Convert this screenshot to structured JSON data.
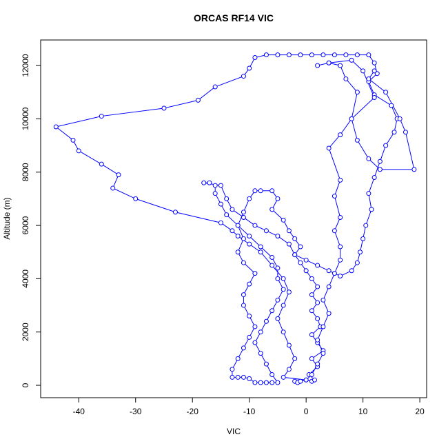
{
  "chart_data": {
    "type": "line",
    "markers": true,
    "title": "ORCAS RF14 VIC",
    "x_label": "VIC",
    "y_label": "Altitude (m)",
    "color": "#0000ff",
    "xlim": [
      -46.7,
      21.2
    ],
    "ylim": [
      -465,
      12960
    ],
    "xticks": [
      -40,
      -30,
      -20,
      -10,
      0,
      10,
      20
    ],
    "yticks": [
      0,
      2000,
      4000,
      6000,
      8000,
      10000,
      12000
    ],
    "x": [
      -2,
      -1.5,
      -1,
      0,
      1,
      1.5,
      0.5,
      2,
      1,
      3,
      2,
      1,
      2.5,
      2,
      1,
      2,
      1,
      2,
      1,
      0,
      -1,
      -2,
      -1,
      -2,
      -3,
      -4,
      -6,
      -5,
      -6,
      -8,
      -9,
      -10,
      -11,
      -12,
      -11,
      -12,
      -11,
      -9,
      -10,
      -11,
      -11,
      -10,
      -9,
      -10,
      -11,
      -12,
      -13,
      -13,
      -12,
      -11,
      -10,
      -9,
      -8,
      -7,
      -6,
      -5,
      -6,
      -7,
      -8,
      -9,
      -8,
      -7,
      -6,
      -5,
      -4,
      -5,
      -5,
      -6,
      -8,
      -10,
      -12,
      -14,
      -15,
      -16,
      -16,
      -17,
      -18,
      -15,
      -14,
      -13,
      -11,
      -9,
      -7,
      -5,
      -3,
      -2,
      0,
      2,
      4,
      6,
      8,
      9,
      9.5,
      10,
      10.5,
      11.5,
      11,
      12,
      13,
      14,
      15.5,
      16,
      15,
      12,
      11,
      12.5,
      12,
      11,
      9,
      7,
      5,
      3,
      1,
      -1,
      -3,
      -5,
      -7,
      -9,
      -10,
      -11,
      -16,
      -19,
      -25,
      -36,
      -44,
      -41,
      -40,
      -36,
      -33,
      -34,
      -30,
      -23,
      -15,
      -13,
      -12,
      -10,
      -8,
      -6,
      -4,
      -3,
      -4,
      -5,
      -4,
      -3,
      -2,
      -3,
      -4,
      0,
      1,
      2,
      3,
      2,
      3,
      4,
      3,
      4,
      5,
      6,
      6,
      5,
      6,
      5,
      6,
      4,
      6,
      8,
      9,
      7,
      6,
      4,
      2,
      4,
      8,
      10,
      12,
      8,
      9,
      11,
      13,
      19,
      17.5,
      16.5,
      14,
      11,
      12
    ],
    "values": [
      150,
      100,
      150,
      200,
      150,
      200,
      400,
      700,
      1000,
      1300,
      1600,
      1900,
      2200,
      2500,
      2800,
      3100,
      3400,
      3700,
      4000,
      4300,
      4600,
      4900,
      5200,
      5500,
      5800,
      6200,
      6600,
      7000,
      7300,
      7300,
      7300,
      7000,
      6500,
      6000,
      5500,
      5000,
      4600,
      4200,
      3800,
      3400,
      3000,
      2600,
      2200,
      1800,
      1400,
      1000,
      600,
      300,
      300,
      300,
      250,
      100,
      100,
      100,
      100,
      100,
      400,
      800,
      1200,
      1600,
      2000,
      2400,
      2800,
      3200,
      3600,
      4000,
      4400,
      4800,
      5200,
      5600,
      6000,
      6400,
      6800,
      7200,
      7500,
      7600,
      7600,
      7500,
      7000,
      6600,
      6300,
      6000,
      5800,
      5600,
      5300,
      4900,
      4700,
      4500,
      4300,
      4100,
      4300,
      4600,
      5000,
      5500,
      6000,
      6600,
      7200,
      7800,
      8400,
      9000,
      9500,
      10000,
      10500,
      10900,
      11400,
      11700,
      12100,
      12400,
      12400,
      12400,
      12400,
      12400,
      12400,
      12400,
      12400,
      12400,
      12400,
      12300,
      11900,
      11600,
      11200,
      10700,
      10400,
      10100,
      9700,
      9200,
      8800,
      8300,
      7900,
      7400,
      7000,
      6500,
      6100,
      5800,
      5600,
      5300,
      5000,
      4500,
      4000,
      3500,
      3000,
      2500,
      2000,
      1500,
      1000,
      600,
      300,
      200,
      400,
      800,
      1200,
      1700,
      2200,
      2700,
      3200,
      3700,
      4200,
      4700,
      5200,
      5800,
      6300,
      7100,
      7700,
      8900,
      9400,
      10000,
      11000,
      11500,
      12000,
      12100,
      12000,
      12100,
      12200,
      11800,
      10800,
      10000,
      9200,
      8500,
      8100,
      8100,
      9500,
      10000,
      11000,
      11500,
      11800
    ]
  }
}
